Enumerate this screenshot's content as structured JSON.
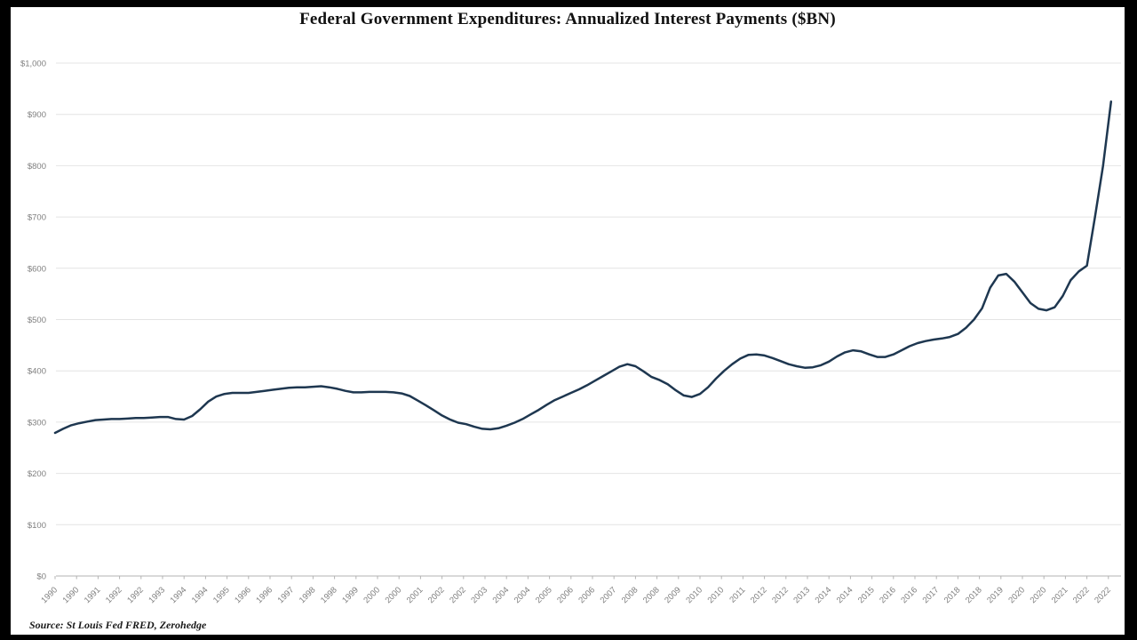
{
  "frame": {
    "letterbox_color": "#000000",
    "plot_background": "#ffffff"
  },
  "chart_data": {
    "type": "line",
    "title": "Federal Government Expenditures: Annualized Interest Payments ($BN)",
    "source_note": "Source: St Louis Fed FRED, Zerohedge",
    "xlabel": "",
    "ylabel": "",
    "ylim": [
      0,
      1000
    ],
    "y_tick_interval": 100,
    "y_tick_labels": [
      "$1,000",
      "$900",
      "$800",
      "$700",
      "$600",
      "$500",
      "$400",
      "$300",
      "$200",
      "$100",
      "$0"
    ],
    "x_tick_labels": [
      "1990",
      "1990",
      "1991",
      "1992",
      "1992",
      "1993",
      "1994",
      "1994",
      "1995",
      "1996",
      "1996",
      "1997",
      "1998",
      "1998",
      "1999",
      "2000",
      "2000",
      "2001",
      "2002",
      "2002",
      "2003",
      "2004",
      "2004",
      "2005",
      "2006",
      "2006",
      "2007",
      "2008",
      "2008",
      "2009",
      "2010",
      "2010",
      "2011",
      "2012",
      "2012",
      "2013",
      "2014",
      "2014",
      "2015",
      "2016",
      "2016",
      "2017",
      "2018",
      "2018",
      "2019",
      "2020",
      "2020",
      "2021",
      "2022",
      "2022"
    ],
    "grid": "horizontal",
    "legend": "none",
    "series": [
      {
        "name": "Annualized Interest Payments ($BN)",
        "color": "#1e3750",
        "x_start": 1990.0,
        "x_step": 0.25,
        "values": [
          279,
          287,
          294,
          298,
          301,
          304,
          305,
          306,
          306,
          307,
          308,
          308,
          309,
          310,
          310,
          306,
          305,
          312,
          325,
          340,
          350,
          355,
          357,
          357,
          357,
          359,
          361,
          363,
          365,
          367,
          368,
          368,
          369,
          370,
          368,
          365,
          361,
          358,
          358,
          359,
          359,
          359,
          358,
          356,
          351,
          342,
          333,
          323,
          313,
          305,
          299,
          296,
          291,
          287,
          286,
          288,
          293,
          299,
          306,
          315,
          324,
          334,
          343,
          350,
          357,
          364,
          372,
          381,
          390,
          399,
          408,
          413,
          409,
          399,
          388,
          382,
          374,
          362,
          352,
          349,
          355,
          368,
          385,
          400,
          413,
          424,
          431,
          432,
          430,
          425,
          419,
          413,
          409,
          406,
          407,
          411,
          418,
          428,
          436,
          440,
          438,
          432,
          427,
          427,
          432,
          440,
          448,
          454,
          458,
          461,
          463,
          466,
          472,
          484,
          500,
          522,
          562,
          586,
          589,
          574,
          553,
          532,
          521,
          518,
          524,
          546,
          577,
          594,
          605,
          700,
          800,
          925
        ]
      }
    ],
    "styles": {
      "gridline_color": "#e4e4e4",
      "axis_color": "#b3b3b3",
      "tick_label_color": "#7f7f7f",
      "title_color": "#111111",
      "line_width": 2.5
    }
  }
}
